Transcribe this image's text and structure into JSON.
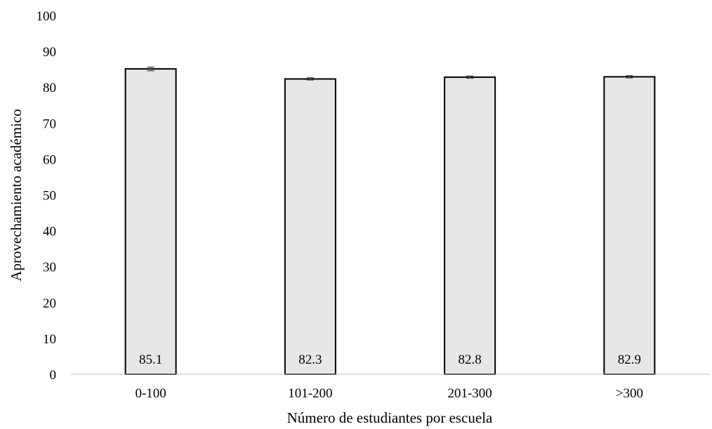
{
  "chart_data": {
    "type": "bar",
    "categories": [
      "0-100",
      "101-200",
      "201-300",
      ">300"
    ],
    "values": [
      85.1,
      82.3,
      82.8,
      82.9
    ],
    "data_labels": [
      "85.1",
      "82.3",
      "82.8",
      "82.9"
    ],
    "error": [
      0.5,
      0.3,
      0.3,
      0.3
    ],
    "xlabel": "Número de estudiantes por escuela",
    "ylabel": "Aprovechamiento académico",
    "ylim": [
      0,
      100
    ],
    "yticks": [
      0,
      10,
      20,
      30,
      40,
      50,
      60,
      70,
      80,
      90,
      100
    ],
    "grid": false,
    "bar_fill": "#e7e7e7",
    "bar_stroke": "#000000",
    "errorbar_color": "#595959"
  }
}
